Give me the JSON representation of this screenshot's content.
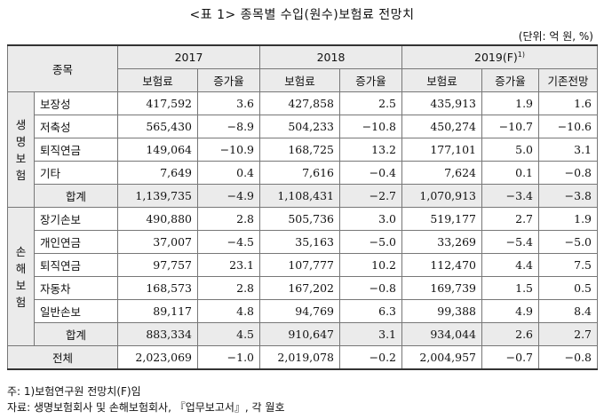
{
  "title": "<표 1> 종목별 수입(원수)보험료 전망치",
  "unit": "(단위: 억 원, %)",
  "header": {
    "item": "종목",
    "years": [
      "2017",
      "2018",
      "2019(F)"
    ],
    "year_sup": "1)",
    "premium": "보험료",
    "growth": "증가율",
    "prior": "기존전망"
  },
  "life": {
    "label": "생\n명\n보\n험",
    "rows": [
      {
        "item": "보장성",
        "v2017": "417,592",
        "g2017": "3.6",
        "v2018": "427,858",
        "g2018": "2.5",
        "v2019": "435,913",
        "g2019": "1.9",
        "prior": "1.6"
      },
      {
        "item": "저축성",
        "v2017": "565,430",
        "g2017": "−8.9",
        "v2018": "504,233",
        "g2018": "−10.8",
        "v2019": "450,274",
        "g2019": "−10.7",
        "prior": "−10.6"
      },
      {
        "item": "퇴직연금",
        "v2017": "149,064",
        "g2017": "−10.9",
        "v2018": "168,725",
        "g2018": "13.2",
        "v2019": "177,101",
        "g2019": "5.0",
        "prior": "3.1"
      },
      {
        "item": "기타",
        "v2017": "7,649",
        "g2017": "0.4",
        "v2018": "7,616",
        "g2018": "−0.4",
        "v2019": "7,624",
        "g2019": "0.1",
        "prior": "−0.8"
      }
    ],
    "total": {
      "item": "합계",
      "v2017": "1,139,735",
      "g2017": "−4.9",
      "v2018": "1,108,431",
      "g2018": "−2.7",
      "v2019": "1,070,913",
      "g2019": "−3.4",
      "prior": "−3.8"
    }
  },
  "nonlife": {
    "label": "손\n해\n보\n험",
    "rows": [
      {
        "item": "장기손보",
        "v2017": "490,880",
        "g2017": "2.8",
        "v2018": "505,736",
        "g2018": "3.0",
        "v2019": "519,177",
        "g2019": "2.7",
        "prior": "1.9"
      },
      {
        "item": "개인연금",
        "v2017": "37,007",
        "g2017": "−4.5",
        "v2018": "35,163",
        "g2018": "−5.0",
        "v2019": "33,269",
        "g2019": "−5.4",
        "prior": "−5.0"
      },
      {
        "item": "퇴직연금",
        "v2017": "97,757",
        "g2017": "23.1",
        "v2018": "107,777",
        "g2018": "10.2",
        "v2019": "112,470",
        "g2019": "4.4",
        "prior": "7.5"
      },
      {
        "item": "자동차",
        "v2017": "168,573",
        "g2017": "2.8",
        "v2018": "167,202",
        "g2018": "−0.8",
        "v2019": "169,739",
        "g2019": "1.5",
        "prior": "0.5"
      },
      {
        "item": "일반손보",
        "v2017": "89,117",
        "g2017": "4.8",
        "v2018": "94,769",
        "g2018": "6.3",
        "v2019": "99,388",
        "g2019": "4.9",
        "prior": "8.4"
      }
    ],
    "total": {
      "item": "합계",
      "v2017": "883,334",
      "g2017": "4.5",
      "v2018": "910,647",
      "g2018": "3.1",
      "v2019": "934,044",
      "g2019": "2.6",
      "prior": "2.7"
    }
  },
  "grand": {
    "item": "전체",
    "v2017": "2,023,069",
    "g2017": "−1.0",
    "v2018": "2,019,078",
    "g2018": "−0.2",
    "v2019": "2,004,957",
    "g2019": "−0.7",
    "prior": "−0.8"
  },
  "notes": {
    "note1": "주: 1)보험연구원 전망치(F)임",
    "source": "자료: 생명보험회사 및 손해보험회사, 『업무보고서』, 각 월호"
  }
}
